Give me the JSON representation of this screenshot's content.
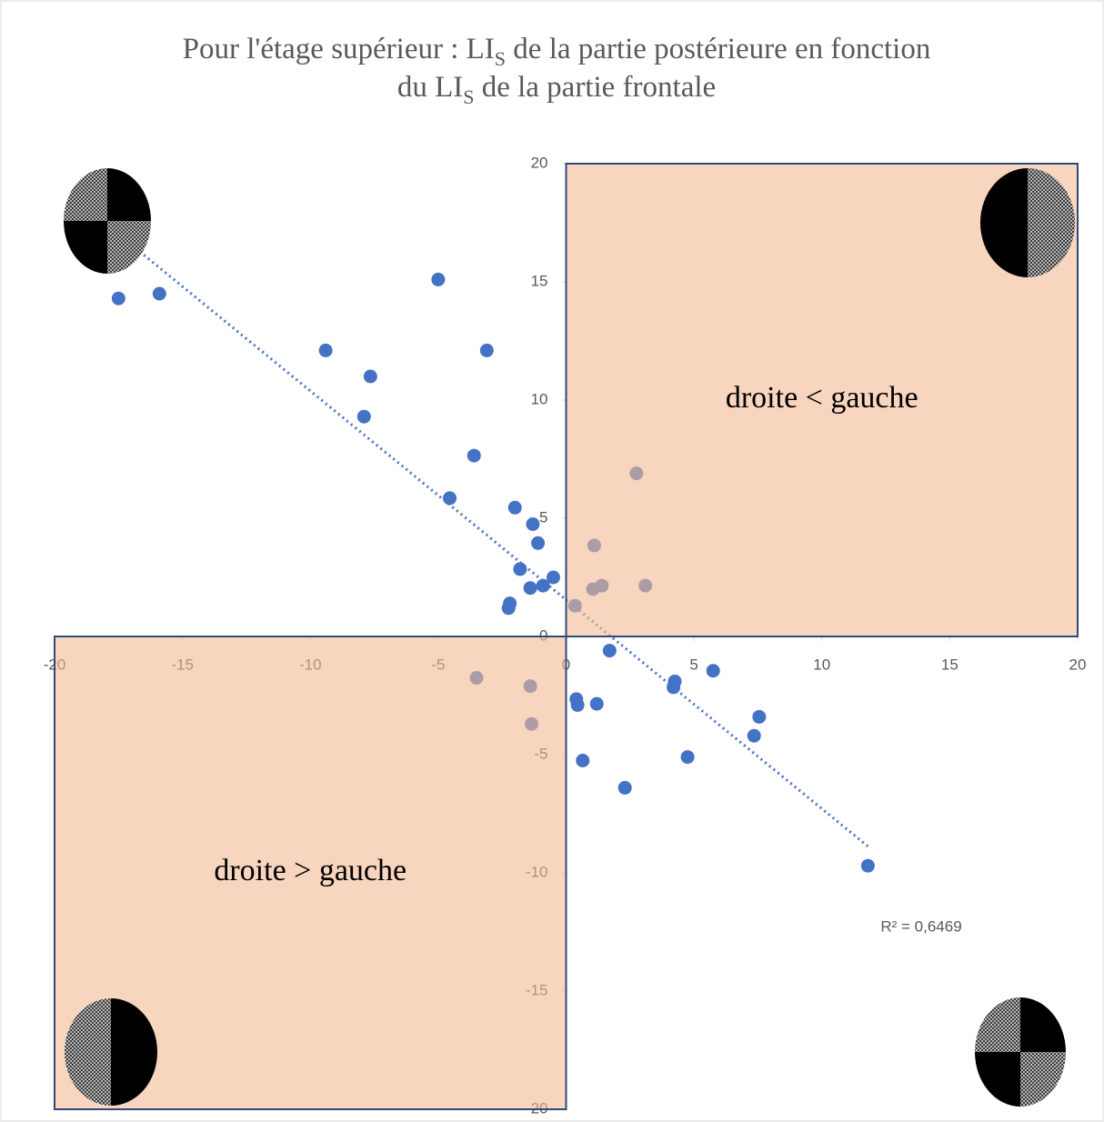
{
  "chart_data": {
    "type": "scatter",
    "title_lines": [
      [
        "Pour l'étage supérieur : LI",
        "S",
        " de la partie postérieure en fonction"
      ],
      [
        "du LI",
        "S",
        " de la partie frontale"
      ]
    ],
    "x": [
      -17.5,
      -15.9,
      -5.0,
      -9.4,
      -3.1,
      -7.65,
      -7.9,
      -3.6,
      -4.55,
      -2.0,
      -1.3,
      -1.1,
      -1.8,
      -0.5,
      -0.9,
      -1.4,
      -2.2,
      -2.25,
      0.35,
      2.75,
      1.1,
      1.4,
      1.05,
      3.1,
      1.7,
      -3.5,
      -1.4,
      -1.35,
      0.4,
      0.45,
      1.2,
      0.65,
      2.3,
      4.25,
      4.2,
      5.75,
      4.75,
      7.55,
      7.35,
      11.8
    ],
    "values": [
      14.3,
      14.5,
      15.1,
      12.1,
      12.1,
      11.0,
      9.3,
      7.65,
      5.85,
      5.45,
      4.75,
      3.95,
      2.85,
      2.5,
      2.15,
      2.05,
      1.4,
      1.2,
      1.3,
      6.9,
      3.85,
      2.15,
      2.0,
      2.15,
      -0.6,
      -1.75,
      -2.1,
      -3.7,
      -2.65,
      -2.9,
      -2.85,
      -5.25,
      -6.4,
      -1.9,
      -2.15,
      -1.45,
      -5.1,
      -3.4,
      -4.2,
      -9.7
    ],
    "color": "#4472c4",
    "xlim": [
      -20,
      20
    ],
    "ylim": [
      -20,
      20
    ],
    "xticks": [
      -20,
      -15,
      -10,
      -5,
      0,
      5,
      10,
      15,
      20
    ],
    "yticks": [
      -20,
      -15,
      -10,
      -5,
      0,
      5,
      10,
      15,
      20
    ],
    "trendline": "linear",
    "r2_label": "R² = 0,6469",
    "annotations": [
      {
        "text": "droite < gauche",
        "quadrant": "upper-right"
      },
      {
        "text": "droite > gauche",
        "quadrant": "lower-left"
      }
    ]
  }
}
